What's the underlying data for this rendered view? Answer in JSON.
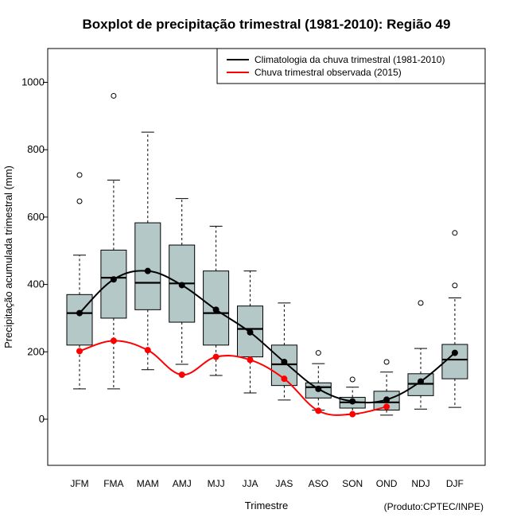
{
  "chart_data": {
    "type": "boxplot",
    "title": "Boxplot de precipitação trimestral (1981-2010): Região 49",
    "xlabel": "Trimestre",
    "ylabel": "Precipitação acumulada trimestral (mm)",
    "credit": "(Produto:CPTEC/INPE)",
    "ylim": [
      -140,
      1110
    ],
    "yticks": [
      0,
      200,
      400,
      600,
      800,
      1000
    ],
    "categories": [
      "JFM",
      "FMA",
      "MAM",
      "AMJ",
      "MJJ",
      "JJA",
      "JAS",
      "ASO",
      "SON",
      "OND",
      "NDJ",
      "DJF"
    ],
    "boxes": [
      {
        "category": "JFM",
        "whisker_low": 90,
        "q1": 220,
        "median": 315,
        "q3": 370,
        "whisker_high": 487,
        "outliers": [
          647,
          725
        ]
      },
      {
        "category": "FMA",
        "whisker_low": 90,
        "q1": 300,
        "median": 420,
        "q3": 502,
        "whisker_high": 710,
        "outliers": [
          960
        ]
      },
      {
        "category": "MAM",
        "whisker_low": 147,
        "q1": 325,
        "median": 405,
        "q3": 583,
        "whisker_high": 852,
        "outliers": []
      },
      {
        "category": "AMJ",
        "whisker_low": 163,
        "q1": 288,
        "median": 403,
        "q3": 517,
        "whisker_high": 655,
        "outliers": []
      },
      {
        "category": "MJJ",
        "whisker_low": 130,
        "q1": 220,
        "median": 315,
        "q3": 440,
        "whisker_high": 573,
        "outliers": []
      },
      {
        "category": "JJA",
        "whisker_low": 78,
        "q1": 185,
        "median": 268,
        "q3": 336,
        "whisker_high": 440,
        "outliers": []
      },
      {
        "category": "JAS",
        "whisker_low": 57,
        "q1": 100,
        "median": 163,
        "q3": 220,
        "whisker_high": 345,
        "outliers": []
      },
      {
        "category": "ASO",
        "whisker_low": 27,
        "q1": 63,
        "median": 95,
        "q3": 108,
        "whisker_high": 165,
        "outliers": [
          197
        ]
      },
      {
        "category": "SON",
        "whisker_low": 15,
        "q1": 33,
        "median": 50,
        "q3": 65,
        "whisker_high": 95,
        "outliers": [
          118
        ]
      },
      {
        "category": "OND",
        "whisker_low": 12,
        "q1": 27,
        "median": 50,
        "q3": 83,
        "whisker_high": 140,
        "outliers": [
          170
        ]
      },
      {
        "category": "NDJ",
        "whisker_low": 30,
        "q1": 70,
        "median": 105,
        "q3": 135,
        "whisker_high": 210,
        "outliers": [
          345
        ]
      },
      {
        "category": "DJF",
        "whisker_low": 35,
        "q1": 120,
        "median": 177,
        "q3": 222,
        "whisker_high": 360,
        "outliers": [
          397,
          553
        ]
      }
    ],
    "series": [
      {
        "name": "Climatologia da chuva trimestral (1981-2010)",
        "color": "#000000",
        "values": [
          315,
          415,
          440,
          398,
          325,
          258,
          170,
          90,
          53,
          58,
          112,
          197
        ]
      },
      {
        "name": "Chuva trimestral observada (2015)",
        "color": "#ff0000",
        "values": [
          202,
          233,
          205,
          132,
          185,
          176,
          120,
          25,
          15,
          37,
          null,
          null
        ]
      }
    ],
    "box_fill": "#b4c8c8",
    "legend_position": "top-right"
  }
}
